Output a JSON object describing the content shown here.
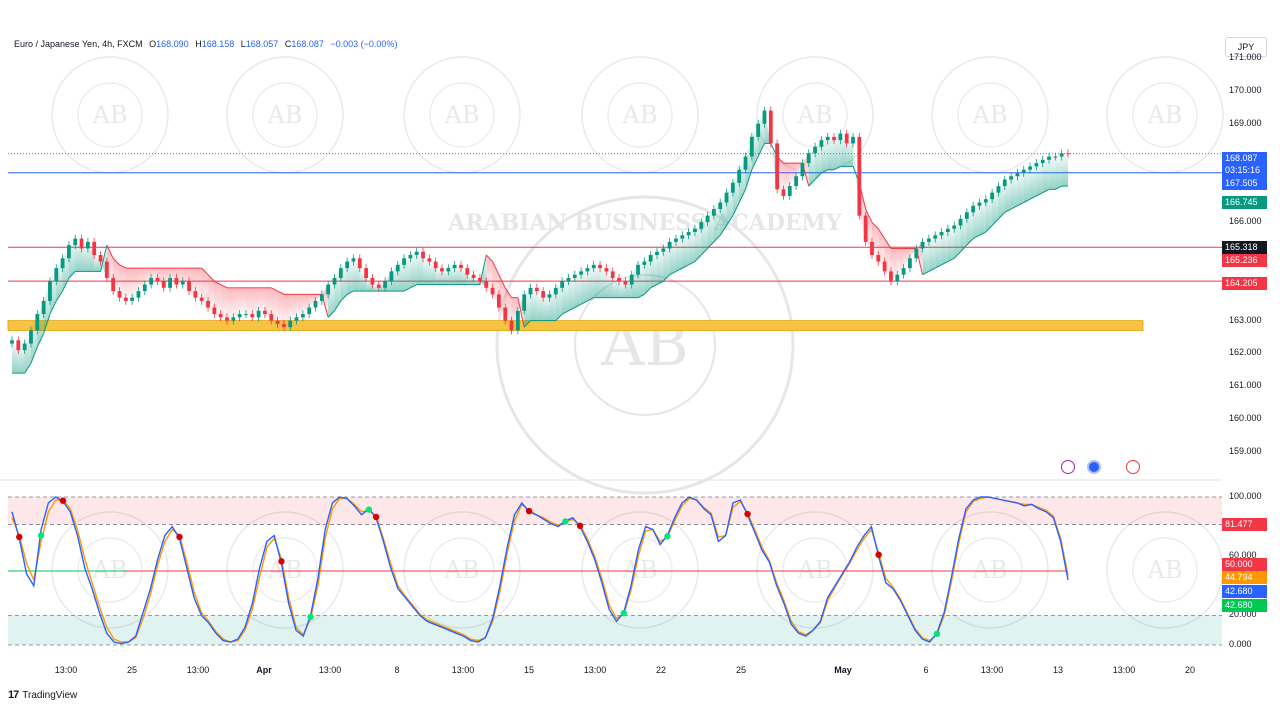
{
  "legend": {
    "symbol": "Euro / Japanese Yen, 4h, FXCM",
    "open_label": "O",
    "open": "168.090",
    "high_label": "H",
    "high": "168.158",
    "low_label": "L",
    "low": "168.057",
    "close_label": "C",
    "close": "168.087",
    "change": "−0.003 (−0.00%)"
  },
  "currency": "JPY",
  "price_axis": {
    "ticks": [
      "171.000",
      "170.000",
      "169.000",
      "166.000",
      "163.000",
      "162.000",
      "161.000",
      "160.000",
      "159.000"
    ],
    "tags": [
      {
        "label": "168.087",
        "color": "#2962ff"
      },
      {
        "label": "03:15:16",
        "color": "#2962ff"
      },
      {
        "label": "167.505",
        "color": "#2962ff"
      },
      {
        "label": "166.745",
        "color": "#089981"
      },
      {
        "label": "165.318",
        "color": "#131722"
      },
      {
        "label": "165.236",
        "color": "#f23645"
      },
      {
        "label": "164.205",
        "color": "#f23645"
      }
    ]
  },
  "osc_axis": {
    "ticks": [
      "100.000",
      "60.000",
      "20.000",
      "0.000"
    ],
    "tags": [
      {
        "label": "81.477",
        "color": "#f23645"
      },
      {
        "label": "50.000",
        "color": "#f23645"
      },
      {
        "label": "44.794",
        "color": "#ff9800"
      },
      {
        "label": "42.680",
        "color": "#2962ff"
      },
      {
        "label": "42.680",
        "color": "#00c853"
      }
    ]
  },
  "time_axis": [
    "13:00",
    "25",
    "13:00",
    "Apr",
    "13:00",
    "8",
    "13:00",
    "15",
    "13:00",
    "22",
    "25",
    "May",
    "6",
    "13:00",
    "13",
    "13:00",
    "20"
  ],
  "watermark": {
    "letters": "AB",
    "arc": "ARABIAN BUSINESS ACADEMY"
  },
  "footer": {
    "logo": "17",
    "brand": "TradingView"
  },
  "colors": {
    "up": "#089981",
    "down": "#f23645",
    "k_line": "#2962ff",
    "d_line": "#ff9800",
    "zone": "#f6c343"
  },
  "chart_data": [
    {
      "type": "candlestick",
      "symbol": "EUR/JPY",
      "interval": "4h",
      "y_unit": "JPY",
      "ylim": [
        158.6,
        171.4
      ],
      "closes": [
        162.4,
        162.1,
        162.3,
        162.7,
        163.2,
        163.6,
        164.2,
        164.6,
        164.9,
        165.3,
        165.5,
        165.2,
        165.4,
        165.0,
        164.8,
        164.3,
        163.9,
        163.7,
        163.6,
        163.7,
        163.9,
        164.1,
        164.3,
        164.2,
        164.0,
        164.3,
        164.1,
        164.2,
        163.9,
        163.7,
        163.6,
        163.4,
        163.2,
        163.1,
        163.0,
        163.1,
        163.2,
        163.2,
        163.1,
        163.3,
        163.2,
        163.0,
        162.9,
        162.8,
        163.0,
        163.1,
        163.2,
        163.4,
        163.6,
        163.8,
        164.1,
        164.3,
        164.6,
        164.8,
        164.9,
        164.6,
        164.3,
        164.1,
        164.0,
        164.2,
        164.5,
        164.7,
        164.9,
        165.0,
        165.1,
        164.9,
        164.8,
        164.6,
        164.5,
        164.6,
        164.7,
        164.6,
        164.4,
        164.3,
        164.2,
        164.0,
        163.8,
        163.4,
        163.0,
        162.7,
        163.3,
        163.8,
        164.0,
        163.9,
        163.7,
        163.8,
        164.0,
        164.2,
        164.3,
        164.4,
        164.5,
        164.6,
        164.7,
        164.6,
        164.5,
        164.3,
        164.2,
        164.1,
        164.4,
        164.7,
        164.8,
        165.0,
        165.1,
        165.2,
        165.4,
        165.5,
        165.6,
        165.7,
        165.8,
        166.0,
        166.2,
        166.4,
        166.6,
        166.9,
        167.2,
        167.6,
        168.0,
        168.6,
        169.0,
        169.4,
        168.4,
        167.0,
        166.8,
        167.1,
        167.4,
        167.8,
        168.1,
        168.3,
        168.5,
        168.6,
        168.5,
        168.7,
        168.4,
        168.6,
        166.2,
        165.4,
        165.0,
        164.8,
        164.5,
        164.2,
        164.4,
        164.6,
        164.9,
        165.2,
        165.4,
        165.5,
        165.6,
        165.7,
        165.8,
        165.9,
        166.1,
        166.3,
        166.5,
        166.6,
        166.7,
        166.9,
        167.1,
        167.3,
        167.4,
        167.5,
        167.6,
        167.7,
        167.8,
        167.9,
        168.0,
        168.0,
        168.1,
        168.087
      ]
    },
    {
      "type": "line",
      "name_hidden": true,
      "ylim": [
        0,
        100
      ],
      "levels": [
        100,
        81.477,
        50,
        20,
        0
      ],
      "series": [
        {
          "values": [
            90,
            72,
            48,
            40,
            78,
            96,
            100,
            97,
            90,
            74,
            52,
            38,
            22,
            8,
            2,
            1,
            2,
            6,
            22,
            38,
            58,
            74,
            80,
            72,
            52,
            32,
            20,
            15,
            8,
            3,
            2,
            4,
            12,
            28,
            52,
            70,
            74,
            55,
            28,
            10,
            6,
            20,
            45,
            78,
            96,
            100,
            99,
            94,
            88,
            92,
            86,
            70,
            52,
            38,
            32,
            26,
            20,
            16,
            14,
            12,
            10,
            8,
            6,
            3,
            2,
            5,
            18,
            40,
            66,
            88,
            96,
            90,
            88,
            85,
            82,
            80,
            84,
            86,
            80,
            70,
            58,
            42,
            24,
            16,
            22,
            40,
            64,
            80,
            78,
            68,
            74,
            86,
            96,
            100,
            98,
            92,
            88,
            70,
            74,
            96,
            98,
            88,
            76,
            64,
            56,
            40,
            28,
            14,
            8,
            6,
            10,
            16,
            32,
            40,
            48,
            56,
            66,
            74,
            80,
            60,
            42,
            38,
            30,
            20,
            10,
            4,
            2,
            8,
            22,
            46,
            72,
            92,
            98,
            100,
            100,
            99,
            98,
            97,
            96,
            94,
            95,
            92,
            90,
            86,
            70,
            44
          ]
        },
        {
          "values": [
            86,
            74,
            55,
            44,
            70,
            90,
            98,
            98,
            92,
            78,
            58,
            42,
            26,
            12,
            4,
            2,
            2,
            5,
            18,
            34,
            54,
            70,
            78,
            74,
            56,
            36,
            22,
            16,
            9,
            4,
            2,
            3,
            10,
            24,
            46,
            66,
            72,
            58,
            32,
            12,
            7,
            18,
            40,
            72,
            92,
            99,
            99,
            95,
            90,
            91,
            87,
            72,
            55,
            40,
            33,
            27,
            21,
            17,
            15,
            13,
            11,
            9,
            7,
            4,
            3,
            5,
            16,
            36,
            62,
            84,
            95,
            91,
            88,
            86,
            83,
            81,
            83,
            85,
            81,
            72,
            60,
            45,
            27,
            18,
            21,
            37,
            60,
            77,
            78,
            70,
            73,
            84,
            94,
            99,
            98,
            93,
            89,
            73,
            74,
            93,
            97,
            89,
            78,
            66,
            57,
            42,
            30,
            16,
            9,
            7,
            10,
            15,
            30,
            39,
            47,
            55,
            64,
            72,
            78,
            62,
            45,
            39,
            31,
            21,
            11,
            5,
            3,
            7,
            20,
            43,
            69,
            90,
            97,
            99,
            100,
            99,
            98,
            97,
            96,
            95,
            95,
            93,
            91,
            87,
            72,
            47
          ]
        }
      ]
    }
  ]
}
